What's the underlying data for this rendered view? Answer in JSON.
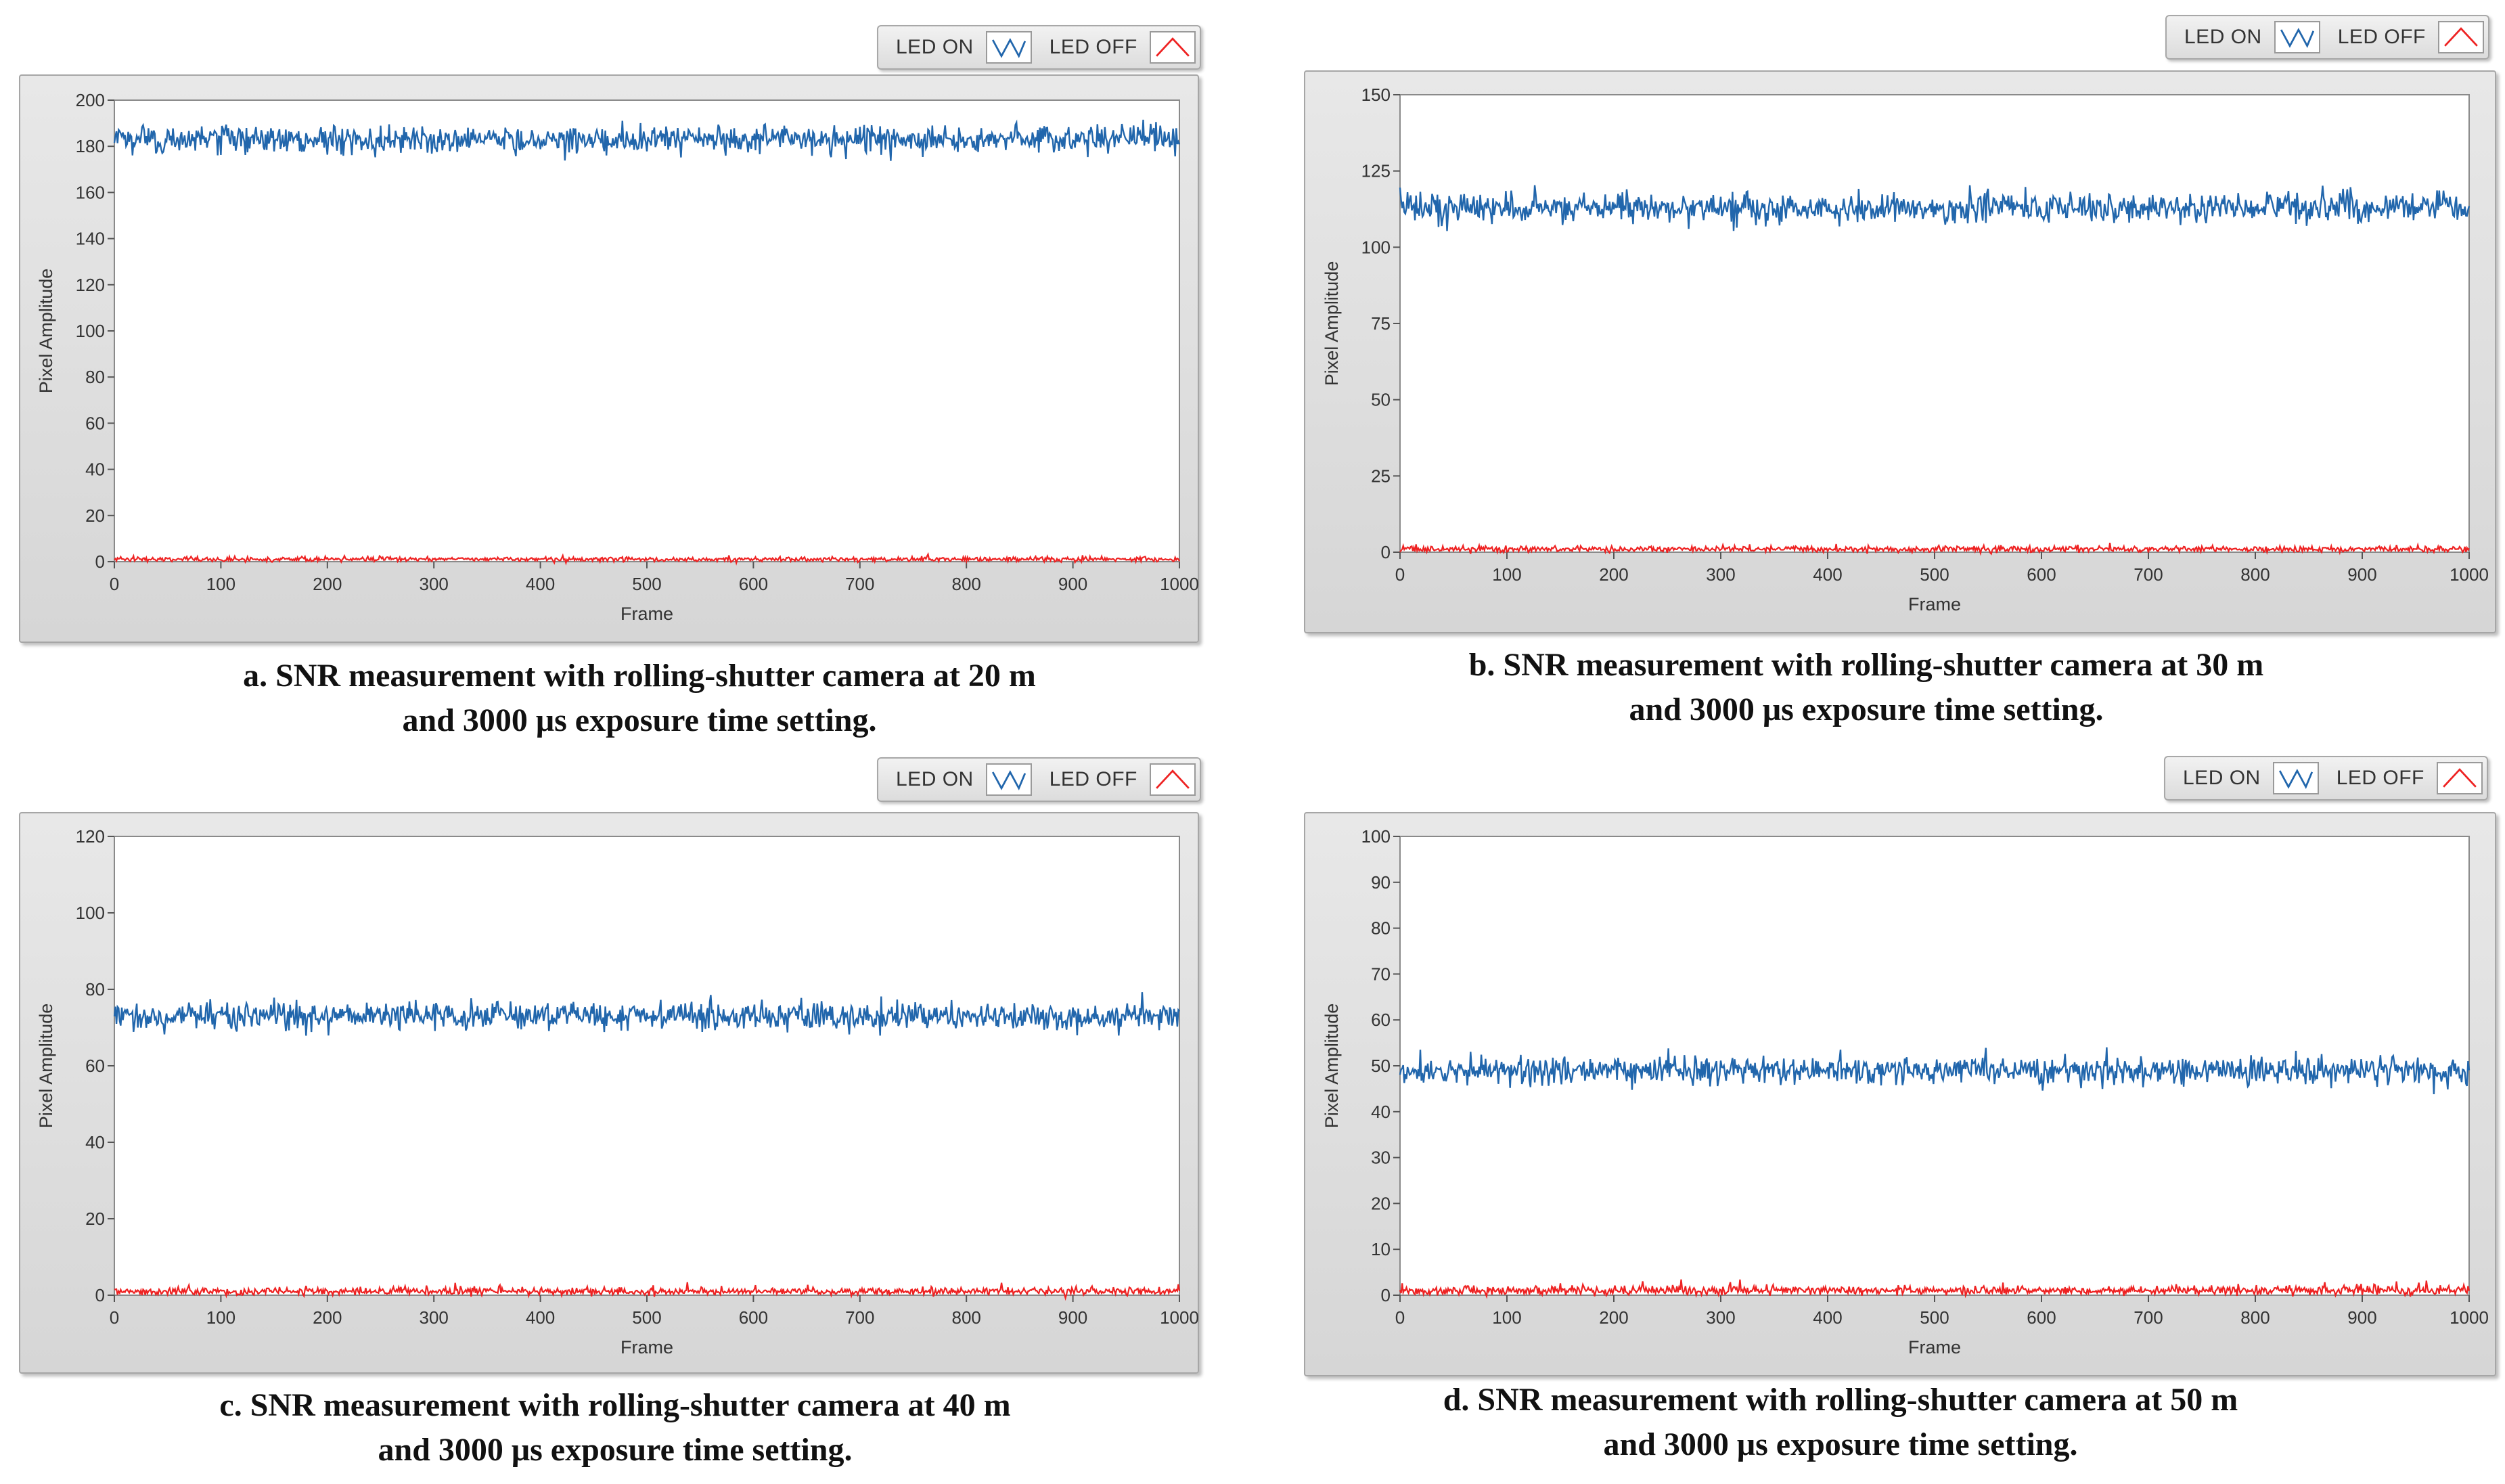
{
  "legend": {
    "on_label": "LED ON",
    "off_label": "LED OFF",
    "on_icon": "wave-icon-blue",
    "off_icon": "triangle-icon-red"
  },
  "colors": {
    "led_on": "#2166ac",
    "led_off": "#ee2222",
    "plot_bg": "#ffffff",
    "frame_bg": "#dedede"
  },
  "captions": [
    {
      "line1": "a. SNR measurement with rolling-shutter camera at 20 m",
      "line2": "and 3000 μs exposure time setting."
    },
    {
      "line1": "b. SNR measurement with rolling-shutter camera at 30 m",
      "line2": "and 3000 μs exposure time setting."
    },
    {
      "line1": "c. SNR measurement with rolling-shutter camera at 40 m",
      "line2": "and 3000 μs exposure time setting."
    },
    {
      "line1": "d. SNR measurement with rolling-shutter camera at 50 m",
      "line2": "and 3000 μs exposure time setting."
    }
  ],
  "chart_data": [
    {
      "type": "line",
      "xlabel": "Frame",
      "ylabel": "Pixel Amplitude",
      "xlim": [
        0,
        1000
      ],
      "ylim": [
        0,
        200
      ],
      "xticks": [
        0,
        100,
        200,
        300,
        400,
        500,
        600,
        700,
        800,
        900,
        1000
      ],
      "yticks": [
        0,
        20,
        40,
        60,
        80,
        100,
        120,
        140,
        160,
        180,
        200
      ],
      "grid": false,
      "series": [
        {
          "name": "LED ON",
          "mean": 183,
          "noise": 3
        },
        {
          "name": "LED OFF",
          "mean": 1,
          "noise": 0.5
        }
      ]
    },
    {
      "type": "line",
      "xlabel": "Frame",
      "ylabel": "Pixel Amplitude",
      "xlim": [
        0,
        1000
      ],
      "ylim": [
        0,
        150
      ],
      "xticks": [
        0,
        100,
        200,
        300,
        400,
        500,
        600,
        700,
        800,
        900,
        1000
      ],
      "yticks": [
        0,
        25,
        50,
        75,
        100,
        125,
        150
      ],
      "grid": false,
      "series": [
        {
          "name": "LED ON",
          "mean": 113,
          "noise": 2.5
        },
        {
          "name": "LED OFF",
          "mean": 1,
          "noise": 0.5
        }
      ]
    },
    {
      "type": "line",
      "xlabel": "Frame",
      "ylabel": "Pixel Amplitude",
      "xlim": [
        0,
        1000
      ],
      "ylim": [
        0,
        120
      ],
      "xticks": [
        0,
        100,
        200,
        300,
        400,
        500,
        600,
        700,
        800,
        900,
        1000
      ],
      "yticks": [
        0,
        20,
        40,
        60,
        80,
        100,
        120
      ],
      "grid": false,
      "series": [
        {
          "name": "LED ON",
          "mean": 73,
          "noise": 1.8
        },
        {
          "name": "LED OFF",
          "mean": 1,
          "noise": 0.5
        }
      ]
    },
    {
      "type": "line",
      "xlabel": "Frame",
      "ylabel": "Pixel Amplitude",
      "xlim": [
        0,
        1000
      ],
      "ylim": [
        0,
        100
      ],
      "xticks": [
        0,
        100,
        200,
        300,
        400,
        500,
        600,
        700,
        800,
        900,
        1000
      ],
      "yticks": [
        0,
        10,
        20,
        30,
        40,
        50,
        60,
        70,
        80,
        90,
        100
      ],
      "grid": false,
      "series": [
        {
          "name": "LED ON",
          "mean": 49,
          "noise": 1.5
        },
        {
          "name": "LED OFF",
          "mean": 1,
          "noise": 0.5
        }
      ]
    }
  ]
}
